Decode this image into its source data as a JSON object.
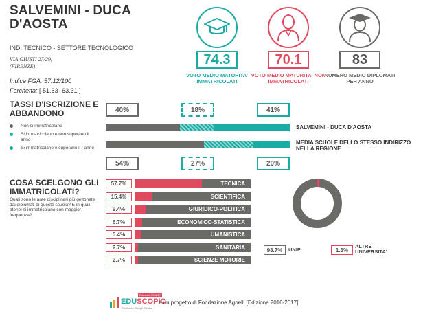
{
  "school": {
    "name": "SALVEMINI - DUCA D'AOSTA",
    "type": "IND. TECNICO - SETTORE TECNOLOGICO",
    "address_line1": "VIA GIUSTI 27/29,",
    "address_line2": "(FIRENZE)",
    "fga_label": "Indice FGA:",
    "fga_value": "57.12/100",
    "forchetta_label": "Forchetta:",
    "forchetta_value": "[ 51.63- 63.31 ]"
  },
  "stats": [
    {
      "value": "74.3",
      "caption": "VOTO MEDIO MATURITA' IMMATRICOLATI",
      "icon": "graduation-cap-icon",
      "color": "#1aaba3"
    },
    {
      "value": "70.1",
      "caption": "VOTO MEDIO MATURITA' NON IMMATRICOLATI",
      "icon": "person-icon",
      "color": "#e04a5f"
    },
    {
      "value": "83",
      "caption": "NUMERO MEDIO DIPLOMATI PER ANNO",
      "icon": "graduate-person-icon",
      "color": "#6a6a66"
    }
  ],
  "dropout": {
    "title": "TASSI D'ISCRIZIONE E ABBANDONO",
    "legend": [
      {
        "label": "Non si immatricolano",
        "color": "#6a6a66"
      },
      {
        "label": "Si immatricolano e non superano il I anno",
        "color": "#1aaba3"
      },
      {
        "label": "Si immatricolano e superano il I anno",
        "color": "#1aaba3"
      }
    ],
    "school_row": {
      "label": "SALVEMINI - DUCA D'AOSTA",
      "values": [
        40,
        18,
        41
      ],
      "labels": [
        "40%",
        "18%",
        "41%"
      ]
    },
    "region_row": {
      "label": "MEDIA SCUOLE DELLO STESSO INDIRIZZO NELLA REGIONE",
      "values": [
        54,
        27,
        20
      ],
      "labels": [
        "54%",
        "27%",
        "20%"
      ]
    }
  },
  "choices": {
    "title": "COSA SCELGONO GLI IMMATRICOLATI?",
    "question": "Quali sono le aree disciplinari più gettonate dai diplomati di questa scuola? E in quali atenei si immatricolano con maggior frequenza?",
    "areas": [
      {
        "name": "TECNICA",
        "value": 57.7,
        "label": "57.7%"
      },
      {
        "name": "SCIENTIFICA",
        "value": 15.4,
        "label": "15.4%"
      },
      {
        "name": "GIURIDICO-POLITICA",
        "value": 9.4,
        "label": "9.4%"
      },
      {
        "name": "ECONOMICO-STATISTICA",
        "value": 6.7,
        "label": "6.7%"
      },
      {
        "name": "UMANISTICA",
        "value": 5.4,
        "label": "5.4%"
      },
      {
        "name": "SANITARIA",
        "value": 2.7,
        "label": "2.7%"
      },
      {
        "name": "SCIENZE MOTORIE",
        "value": 2.7,
        "label": "2.7%"
      }
    ],
    "universities": [
      {
        "name": "UNIFI",
        "value": 98.7,
        "label": "98.7%",
        "color": "#6a6a66"
      },
      {
        "name": "ALTRE UNIVERSITA'",
        "value": 1.3,
        "label": "1.3%",
        "color": "#e04a5f"
      }
    ]
  },
  "footer": {
    "brand_edu": "EDU",
    "brand_scopio": "SCOPIO",
    "edition_tag": "Edizione 2016/17",
    "tagline": "Confronta. Scegli. Studia.",
    "text": "è un progetto di Fondazione Agnelli [Edizione 2016-2017]"
  }
}
